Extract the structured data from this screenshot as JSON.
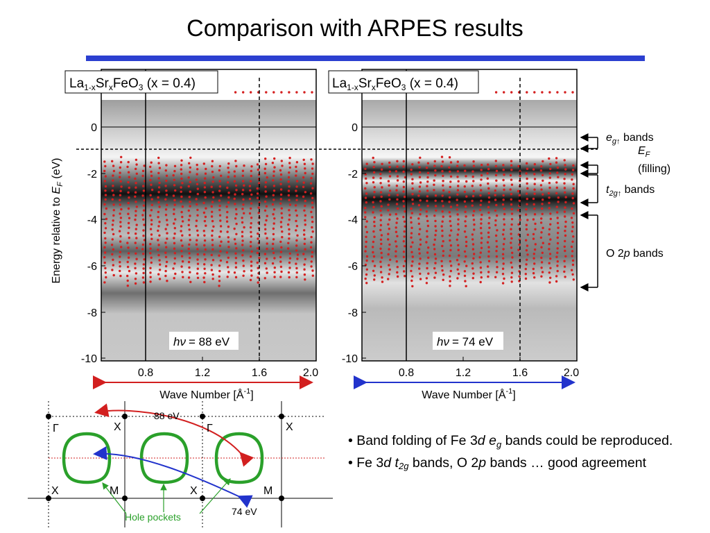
{
  "slide": {
    "title": "Comparison with ARPES results",
    "accent_color": "#2b3fd0"
  },
  "panels": [
    {
      "label_main": "La",
      "label_sub1": "1-x",
      "label_mid": "Sr",
      "label_sub2": "x",
      "label_tail": "FeO",
      "label_sub3": "3",
      "label_cond": " (x = 0.4)",
      "photon_label": "= 88 eV",
      "photon_symbol": "hν",
      "arrow_color": "#d21f1f"
    },
    {
      "label_main": "La",
      "label_sub1": "1-x",
      "label_mid": "Sr",
      "label_sub2": "x",
      "label_tail": "FeO",
      "label_sub3": "3",
      "label_cond": " (x = 0.4)",
      "photon_label": "= 74 eV",
      "photon_symbol": "hν",
      "arrow_color": "#2233cc"
    }
  ],
  "axes": {
    "ylabel_prefix": "Energy relative to ",
    "ylabel_var": "E",
    "ylabel_sub": "F",
    "ylabel_unit": " (eV)",
    "xlabel": "Wave Number [Å",
    "xlabel_sup": "-1",
    "xlabel_close": "]",
    "y_ticks": [
      "0",
      "-2",
      "-4",
      "-6",
      "-8",
      "-10"
    ],
    "x_ticks": [
      "0.8",
      "1.2",
      "1.6",
      "2.0"
    ]
  },
  "annotations": {
    "eg_var": "e",
    "eg_sub": "g↑",
    "eg_text": " bands",
    "ef_var": "E",
    "ef_sub": "F",
    "filling": "(filling)",
    "t2g_var": "t",
    "t2g_sub": "2g↑",
    "t2g_text": " bands",
    "o2p": "O 2",
    "o2p_var": "p",
    "o2p_text": " bands"
  },
  "bz_diagram": {
    "gamma": "Γ",
    "x": "X",
    "m": "M",
    "label_88": "88 eV",
    "label_74": "74 eV",
    "hole_pockets": "Hole pockets",
    "pocket_color": "#2aa02a"
  },
  "bullets": [
    {
      "pre": "• Band folding of Fe 3",
      "d": "d",
      "sp": " ",
      "e": "e",
      "sub": "g",
      "post": " bands could be reproduced."
    },
    {
      "pre": "• Fe 3",
      "d": "d",
      "sp": " ",
      "t": "t",
      "sub": "2g",
      "mid": " bands, O 2",
      "p": "p",
      "post": " bands … good agreement"
    }
  ]
}
